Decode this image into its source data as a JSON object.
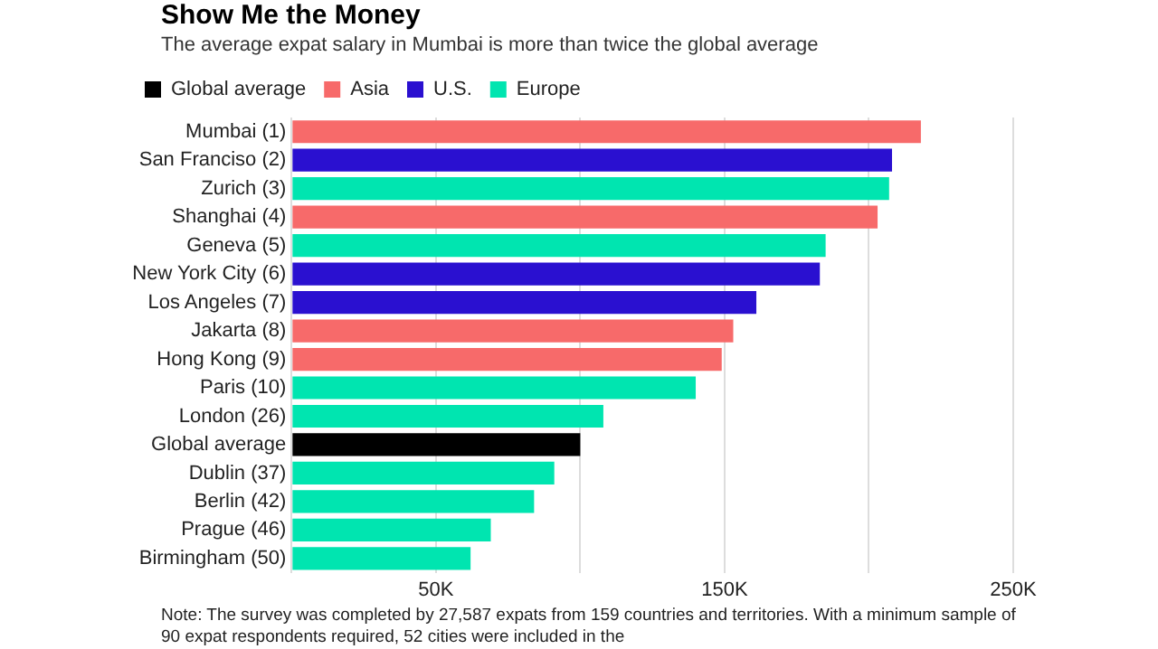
{
  "chart_data": {
    "type": "bar",
    "orientation": "horizontal",
    "title": "Show Me the Money",
    "subtitle": "The average expat salary in Mumbai is more than twice the global average",
    "categories": [
      "Mumbai (1)",
      "San Franciso (2)",
      "Zurich (3)",
      "Shanghai (4)",
      "Geneva (5)",
      "New York City (6)",
      "Los Angeles (7)",
      "Jakarta (8)",
      "Hong Kong (9)",
      "Paris (10)",
      "London (26)",
      "Global average",
      "Dublin (37)",
      "Berlin (42)",
      "Prague (46)",
      "Birmingham (50)"
    ],
    "series": [
      {
        "name": "Global average",
        "color": "#000000",
        "values": [
          null,
          null,
          null,
          null,
          null,
          null,
          null,
          null,
          null,
          null,
          null,
          100000,
          null,
          null,
          null,
          null
        ]
      },
      {
        "name": "Asia",
        "color": "#f76a6a",
        "values": [
          218000,
          null,
          null,
          203000,
          null,
          null,
          null,
          153000,
          149000,
          null,
          null,
          null,
          null,
          null,
          null,
          null
        ]
      },
      {
        "name": "U.S.",
        "color": "#2a10d0",
        "values": [
          null,
          208000,
          null,
          null,
          null,
          183000,
          161000,
          null,
          null,
          null,
          null,
          null,
          null,
          null,
          null,
          null
        ]
      },
      {
        "name": "Europe",
        "color": "#00e5b0",
        "values": [
          null,
          null,
          207000,
          null,
          185000,
          null,
          null,
          null,
          null,
          140000,
          108000,
          null,
          91000,
          84000,
          69000,
          62000
        ]
      }
    ],
    "xlim": [
      0,
      250000
    ],
    "xticks": [
      {
        "value": 0,
        "label": null
      },
      {
        "value": 50000,
        "label": "50K"
      },
      {
        "value": 100000,
        "label": null
      },
      {
        "value": 150000,
        "label": "150K"
      },
      {
        "value": 200000,
        "label": null
      },
      {
        "value": 250000,
        "label": "250K"
      }
    ],
    "grid": "x",
    "legend": "top left",
    "annotations": [
      "Note: The survey was completed by 27,587 expats from 159 countries and territories. With a minimum sample of 90 expat respondents required, 52 cities were included in the"
    ]
  }
}
